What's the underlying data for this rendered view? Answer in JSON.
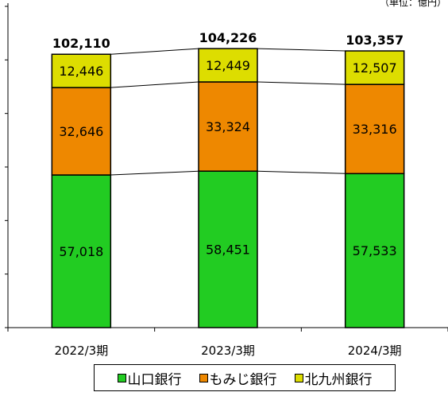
{
  "unit_note": "（単位：億円）",
  "chart_data": {
    "type": "bar",
    "stacked": true,
    "categories": [
      "2022/3期",
      "2023/3期",
      "2024/3期"
    ],
    "series": [
      {
        "name": "山口銀行",
        "values": [
          57018,
          58451,
          57533
        ],
        "labels": [
          "57,018",
          "58,451",
          "57,533"
        ],
        "color": "#22cc22"
      },
      {
        "name": "もみじ銀行",
        "values": [
          32646,
          33324,
          33316
        ],
        "labels": [
          "32,646",
          "33,324",
          "33,316"
        ],
        "color": "#ee8800"
      },
      {
        "name": "北九州銀行",
        "values": [
          12446,
          12449,
          12507
        ],
        "labels": [
          "12,446",
          "12,449",
          "12,507"
        ],
        "color": "#dddd00"
      }
    ],
    "totals": [
      102110,
      104226,
      103357
    ],
    "total_labels": [
      "102,110",
      "104,226",
      "103,357"
    ],
    "ylim": [
      0,
      120000
    ],
    "grid": false,
    "legend_position": "bottom"
  },
  "legend": [
    {
      "label": "山口銀行",
      "color": "#22cc22"
    },
    {
      "label": "もみじ銀行",
      "color": "#ee8800"
    },
    {
      "label": "北九州銀行",
      "color": "#dddd00"
    }
  ]
}
